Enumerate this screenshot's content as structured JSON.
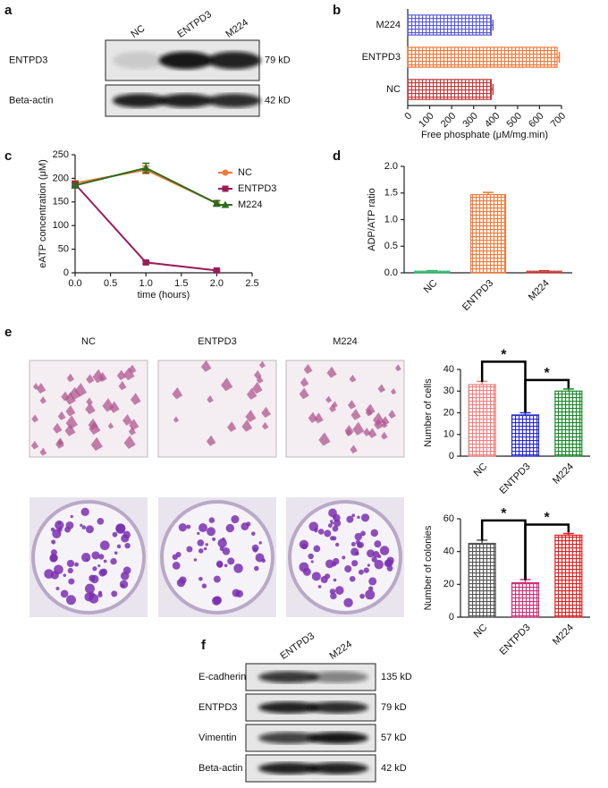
{
  "blots_a": {
    "label": "a",
    "columns": [
      "NC",
      "ENTPD3",
      "M224"
    ],
    "rows": [
      {
        "name": "ENTPD3",
        "size": "79 kD"
      },
      {
        "name": "Beta-actin",
        "size": "42 kD"
      }
    ]
  },
  "chart_data": [
    {
      "type": "hbar",
      "panel": "b",
      "categories": [
        "M224",
        "ENTPD3",
        "NC"
      ],
      "values": [
        380,
        680,
        380
      ],
      "errors": [
        8,
        10,
        8
      ],
      "colors": [
        "#5b5bd6",
        "#f07a3a",
        "#c0393b"
      ],
      "xlabel": "Free phosphate (μM/mg.min)",
      "xlim": [
        0,
        700
      ],
      "xticks": [
        0,
        100,
        200,
        300,
        400,
        500,
        600,
        700
      ]
    },
    {
      "type": "line",
      "panel": "c",
      "x": [
        0,
        1,
        2
      ],
      "series": [
        {
          "name": "NC",
          "color": "#f07a3a",
          "marker": "circle",
          "values": [
            190,
            218,
            147
          ],
          "errors": [
            5,
            8,
            6
          ]
        },
        {
          "name": "ENTPD3",
          "color": "#9b1b5a",
          "marker": "square",
          "values": [
            188,
            22,
            5
          ],
          "errors": [
            4,
            3,
            2
          ]
        },
        {
          "name": "M224",
          "color": "#2e6b1e",
          "marker": "triangle",
          "values": [
            185,
            222,
            147
          ],
          "errors": [
            5,
            10,
            6
          ]
        }
      ],
      "xlabel": "time (hours)",
      "ylabel": "eATP concentration (μM)",
      "xlim": [
        0,
        2.5
      ],
      "xticks": [
        {
          "value": 0,
          "label": "0.0"
        },
        0.5,
        {
          "value": 1,
          "label": "1.0"
        },
        1.5,
        {
          "value": 2,
          "label": "2.0"
        },
        2.5
      ],
      "ylim": [
        0,
        250
      ],
      "yticks": [
        0,
        50,
        100,
        150,
        200,
        250
      ]
    },
    {
      "type": "bar",
      "panel": "d",
      "categories": [
        "NC",
        "ENTPD3",
        "M224"
      ],
      "values": [
        0.03,
        1.47,
        0.03
      ],
      "errors": [
        0.01,
        0.04,
        0.01
      ],
      "colors": [
        "#2db36b",
        "#f07a3a",
        "#c0393b"
      ],
      "ylabel": "ADP/ATP ratio",
      "ylim": [
        0,
        2
      ],
      "yticks": [
        {
          "value": 0,
          "label": "0.0"
        },
        0.5,
        {
          "value": 1,
          "label": "1.0"
        },
        1.5,
        {
          "value": 2,
          "label": "2.0"
        }
      ]
    },
    {
      "type": "bar",
      "categories": [
        "NC",
        "ENTPD3",
        "M224"
      ],
      "values": [
        33,
        19,
        30
      ],
      "errors": [
        1.5,
        1,
        1
      ],
      "colors": [
        "#f08080",
        "#2a2ad0",
        "#1a8a2a"
      ],
      "ylabel": "Number of cells",
      "ylim": [
        0,
        40
      ],
      "yticks": [
        0,
        10,
        20,
        30,
        40
      ],
      "annotations": [
        "*",
        "*"
      ]
    },
    {
      "type": "bar",
      "categories": [
        "NC",
        "ENTPD3",
        "M224"
      ],
      "values": [
        45,
        21,
        50
      ],
      "errors": [
        2,
        2,
        1
      ],
      "colors": [
        "#555555",
        "#d0307a",
        "#e02020"
      ],
      "ylabel": "Number of colonies",
      "ylim": [
        0,
        60
      ],
      "yticks": [
        0,
        20,
        40,
        60
      ],
      "annotations": [
        "*",
        "*"
      ]
    }
  ],
  "panel_e": {
    "label": "e",
    "columns": [
      "NC",
      "ENTPD3",
      "M224"
    ]
  },
  "blots_f": {
    "label": "f",
    "columns": [
      "ENTPD3",
      "M224"
    ],
    "rows": [
      {
        "name": "E-cadherin",
        "size": "135 kD"
      },
      {
        "name": "ENTPD3",
        "size": "79 kD"
      },
      {
        "name": "Vimentin",
        "size": "57 kD"
      },
      {
        "name": "Beta-actin",
        "size": "42 kD"
      }
    ]
  }
}
